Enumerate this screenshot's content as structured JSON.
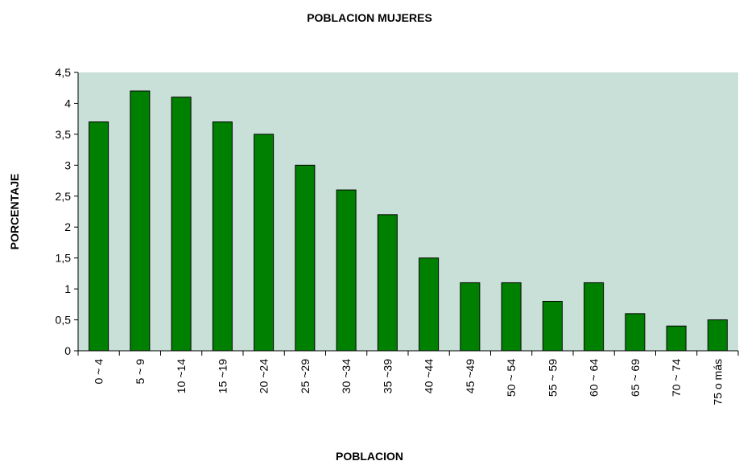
{
  "chart_data": {
    "type": "bar",
    "title": "POBLACION MUJERES",
    "x_label": "POBLACION",
    "y_label": "PORCENTAJE",
    "categories": [
      "0 ~ 4",
      "5 ~ 9",
      "10 ~14",
      "15 ~19",
      "20 ~24",
      "25 ~29",
      "30 ~34",
      "35 ~39",
      "40 ~44",
      "45 ~49",
      "50 ~ 54",
      "55 ~ 59",
      "60 ~ 64",
      "65 ~ 69",
      "70 ~ 74",
      "75 o más"
    ],
    "values": [
      3.7,
      4.2,
      4.1,
      3.7,
      3.5,
      3.0,
      2.6,
      2.2,
      1.5,
      1.1,
      1.1,
      0.8,
      1.1,
      0.6,
      0.4,
      0.5
    ],
    "color": "#008000",
    "ylim": [
      0,
      4.5
    ],
    "yticks": [
      0,
      {
        "value": 0.5,
        "label": "0,5"
      },
      1,
      {
        "value": 1.5,
        "label": "1,5"
      },
      2,
      {
        "value": 2.5,
        "label": "2,5"
      },
      3,
      {
        "value": 3.5,
        "label": "3,5"
      },
      4,
      {
        "value": 4.5,
        "label": "4,5"
      }
    ],
    "grid": false
  }
}
